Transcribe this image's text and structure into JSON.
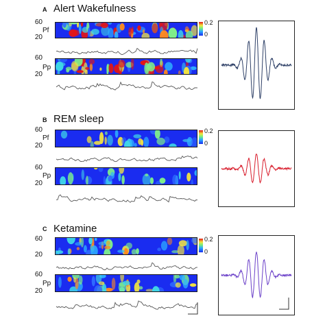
{
  "panels": [
    {
      "letter": "A",
      "title": "Alert Wakefulness",
      "rows": [
        {
          "region": "Pf",
          "freq_top": "60",
          "freq_bottom": "20",
          "intensity": "high"
        },
        {
          "region": "Pp",
          "freq_top": "60",
          "freq_bottom": "20",
          "intensity": "high"
        }
      ],
      "colorbar": {
        "max": "0.2",
        "min": "0"
      },
      "average_color": "#2d3f66"
    },
    {
      "letter": "B",
      "title": "REM sleep",
      "rows": [
        {
          "region": "Pf",
          "freq_top": "60",
          "freq_bottom": "20",
          "intensity": "low"
        },
        {
          "region": "Pp",
          "freq_top": "60",
          "freq_bottom": "20",
          "intensity": "low"
        }
      ],
      "colorbar": {
        "max": "0.2",
        "min": "0"
      },
      "average_color": "#d81b2a"
    },
    {
      "letter": "C",
      "title": "Ketamine",
      "rows": [
        {
          "region": "",
          "freq_top": "60",
          "freq_bottom": "20",
          "intensity": "medium"
        },
        {
          "region": "Pp",
          "freq_top": "60",
          "freq_bottom": "20",
          "intensity": "medium"
        }
      ],
      "colorbar": {
        "max": "0.2",
        "min": "0"
      },
      "average_color": "#6a3fc8"
    }
  ],
  "colors": {
    "spectrogram_low": "#1a2cf0",
    "spectrogram_high": "#e21616",
    "trace": "#555555"
  }
}
